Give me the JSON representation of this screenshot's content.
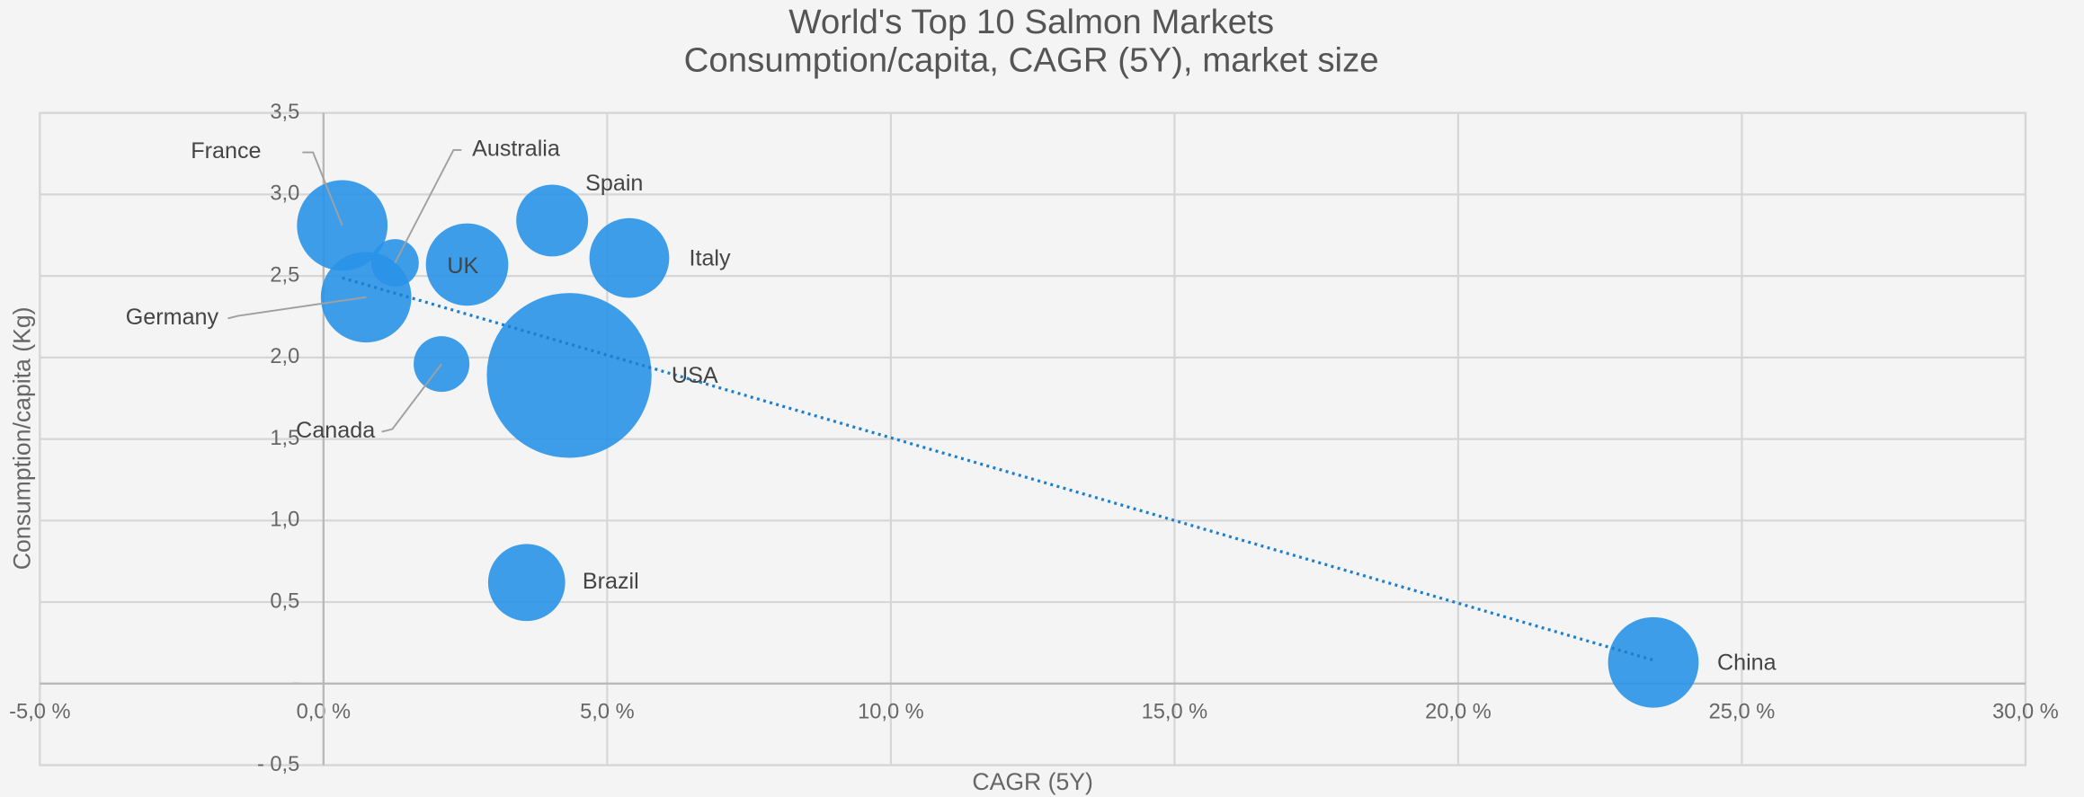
{
  "chart_data": {
    "type": "bubble",
    "title": "World's Top 10 Salmon Markets",
    "subtitle": "Consumption/capita, CAGR (5Y), market size",
    "x_label": "CAGR (5Y)",
    "y_label": "Consumption/capita (Kg)",
    "categories": [
      "France",
      "Australia",
      "Germany",
      "UK",
      "Spain",
      "Italy",
      "USA",
      "Canada",
      "Brazil",
      "China"
    ],
    "x": [
      0.33,
      1.26,
      0.75,
      2.53,
      4.03,
      5.39,
      4.33,
      2.08,
      3.58,
      23.44
    ],
    "values": [
      2.81,
      2.58,
      2.37,
      2.57,
      2.84,
      2.61,
      1.89,
      1.96,
      0.62,
      0.13
    ],
    "sizes": [
      116,
      32,
      116,
      96,
      73,
      90,
      384,
      44,
      84,
      116
    ],
    "color": "#2a94e8",
    "trendline_color": "#1a7fd1",
    "xlim": [
      -5,
      30
    ],
    "ylim": [
      -0.5,
      3.5
    ],
    "xticks": [
      {
        "value": -5,
        "label": "-5,0 %"
      },
      {
        "value": 0,
        "label": "0,0 %"
      },
      {
        "value": 5,
        "label": "5,0 %"
      },
      {
        "value": 10,
        "label": "10,0 %"
      },
      {
        "value": 15,
        "label": "15,0 %"
      },
      {
        "value": 20,
        "label": "20,0 %"
      },
      {
        "value": 25,
        "label": "25,0 %"
      },
      {
        "value": 30,
        "label": "30,0 %"
      }
    ],
    "yticks": [
      {
        "value": -0.5,
        "label": "- 0,5"
      },
      {
        "value": 0,
        "label": "-"
      },
      {
        "value": 0.5,
        "label": "0,5"
      },
      {
        "value": 1,
        "label": "1,0"
      },
      {
        "value": 1.5,
        "label": "1,5"
      },
      {
        "value": 2,
        "label": "2,0"
      },
      {
        "value": 2.5,
        "label": "2,5"
      },
      {
        "value": 3,
        "label": "3,0"
      },
      {
        "value": 3.5,
        "label": "3,5"
      }
    ],
    "grid": true
  }
}
